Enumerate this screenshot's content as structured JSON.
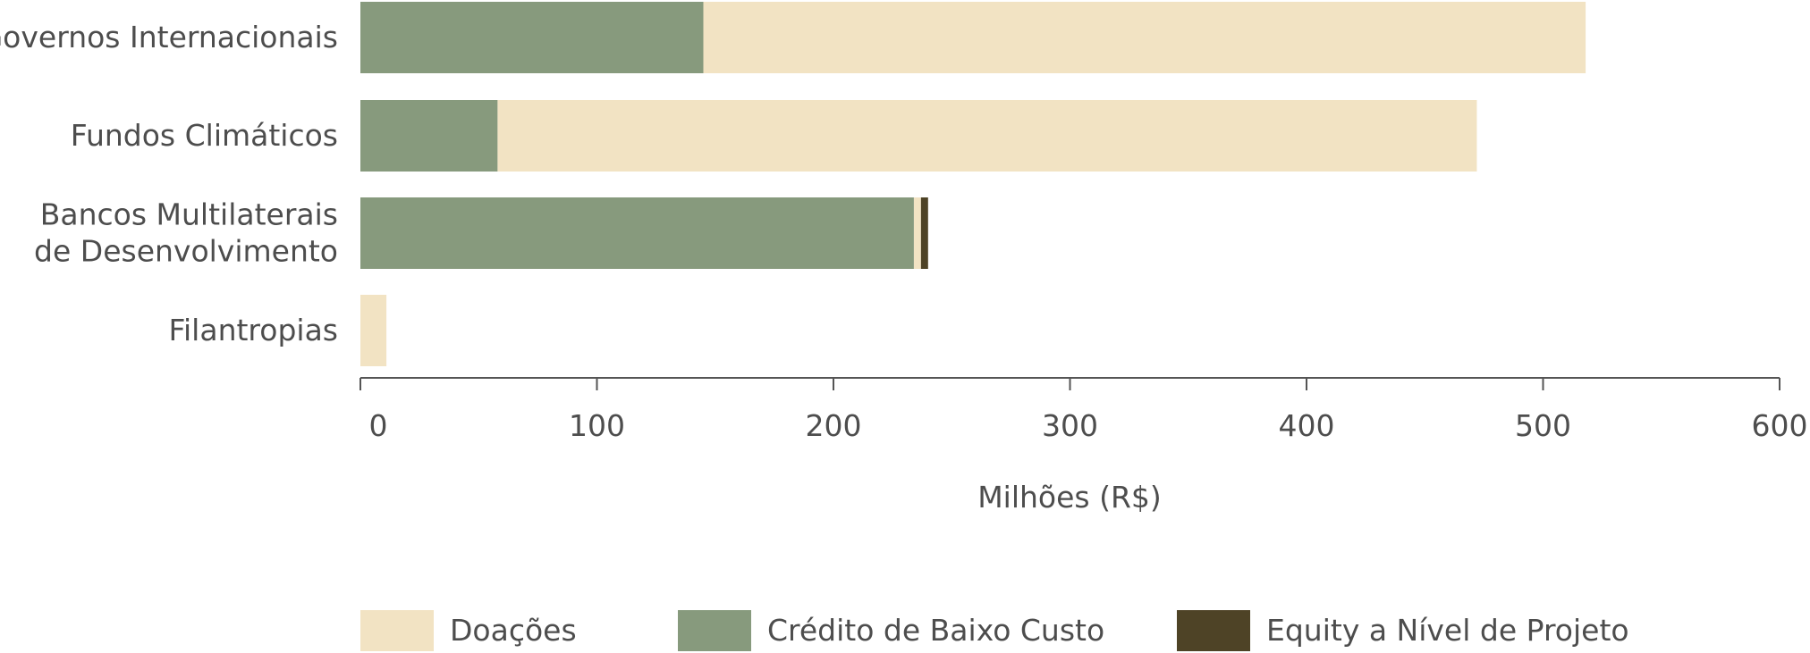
{
  "chart_data": {
    "type": "bar",
    "orientation": "horizontal",
    "stacked": true,
    "categories": [
      [
        "Governos Internacionais"
      ],
      [
        "Fundos Climáticos"
      ],
      [
        "Bancos Multilaterais",
        "de Desenvolvimento"
      ],
      [
        "Filantropias"
      ]
    ],
    "series": [
      {
        "name": "Crédito de Baixo Custo",
        "values": [
          145,
          58,
          234,
          0
        ],
        "color": "#879a7d"
      },
      {
        "name": "Doações",
        "values": [
          373,
          414,
          3,
          11
        ],
        "color": "#f2e3c3"
      },
      {
        "name": "Equity a Nível de Projeto",
        "values": [
          0,
          0,
          3,
          0
        ],
        "color": "#4e4326"
      }
    ],
    "legend_order": [
      "Doações",
      "Crédito de Baixo Custo",
      "Equity a Nível de Projeto"
    ],
    "xlabel": "Milhões (R$)",
    "xlim": [
      0,
      600
    ],
    "xticks": [
      0,
      100,
      200,
      300,
      400,
      500,
      600
    ],
    "grid": false,
    "legend_position": "bottom"
  }
}
